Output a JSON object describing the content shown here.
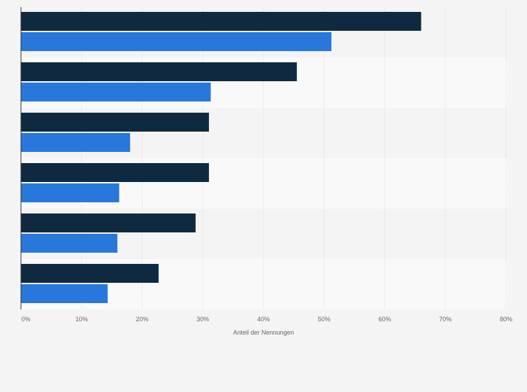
{
  "chart_data": {
    "type": "bar",
    "orientation": "horizontal",
    "categories": [
      "",
      "",
      "",
      "",
      "",
      ""
    ],
    "series": [
      {
        "values": [
          66,
          45.5,
          31,
          31,
          28.8,
          22.7
        ],
        "color": "#0f2a40"
      },
      {
        "values": [
          51.2,
          31.3,
          18,
          16.2,
          15.9,
          14.3
        ],
        "color": "#2878dc"
      }
    ],
    "xlim": [
      0,
      80
    ],
    "xticks": [
      0,
      10,
      20,
      30,
      40,
      50,
      60,
      70,
      80
    ],
    "tick_labels": [
      "0%",
      "10%",
      "20%",
      "30%",
      "40%",
      "50%",
      "60%",
      "70%",
      "80%"
    ],
    "xlabel": "Anteil der Nennungen",
    "grid": true,
    "legend": "none"
  }
}
